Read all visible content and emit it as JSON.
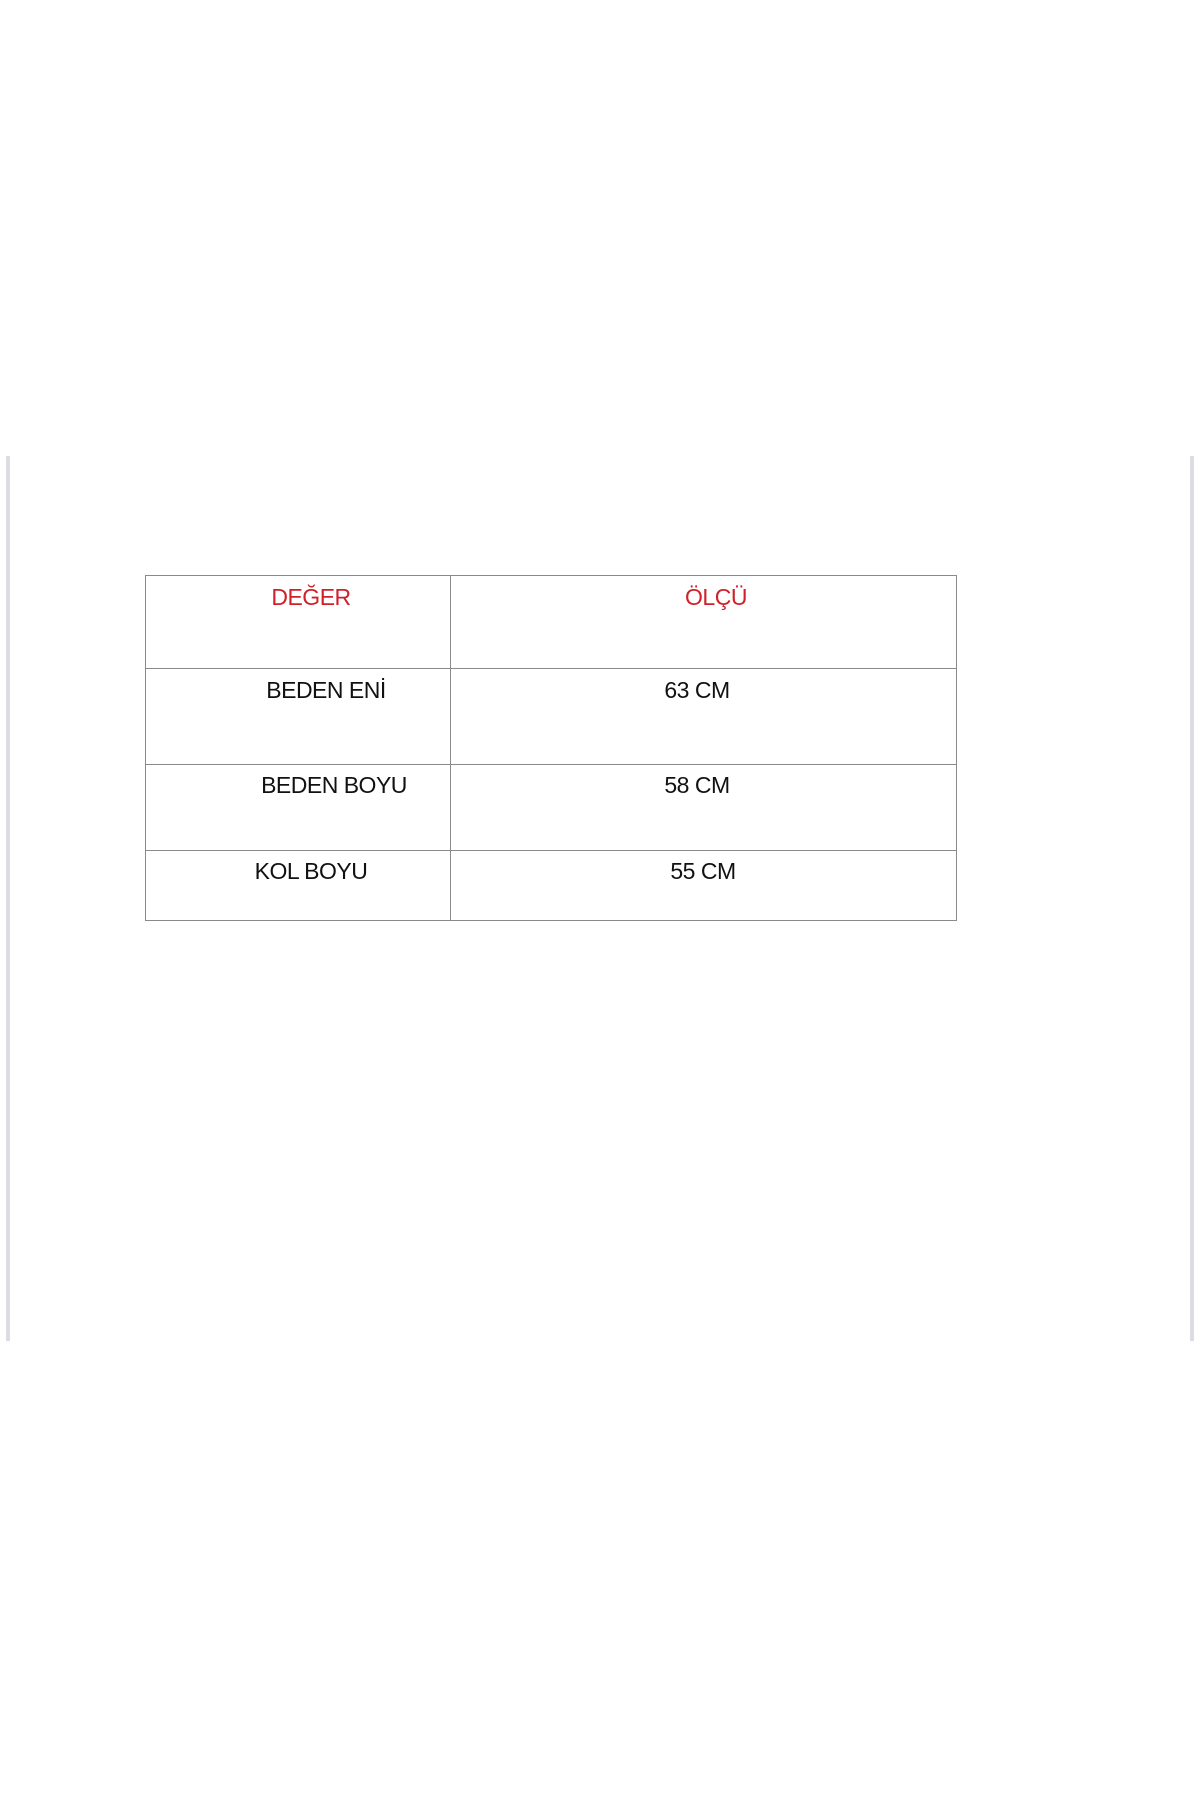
{
  "table": {
    "headers": [
      "DEĞER",
      "ÖLÇÜ"
    ],
    "rows": [
      [
        "BEDEN ENİ",
        "63 CM"
      ],
      [
        "BEDEN BOYU",
        "58 CM"
      ],
      [
        "KOL BOYU",
        "55 CM"
      ]
    ]
  },
  "colors": {
    "header_text": "#d0202a",
    "body_text": "#111111",
    "border": "#8a8a8a"
  }
}
